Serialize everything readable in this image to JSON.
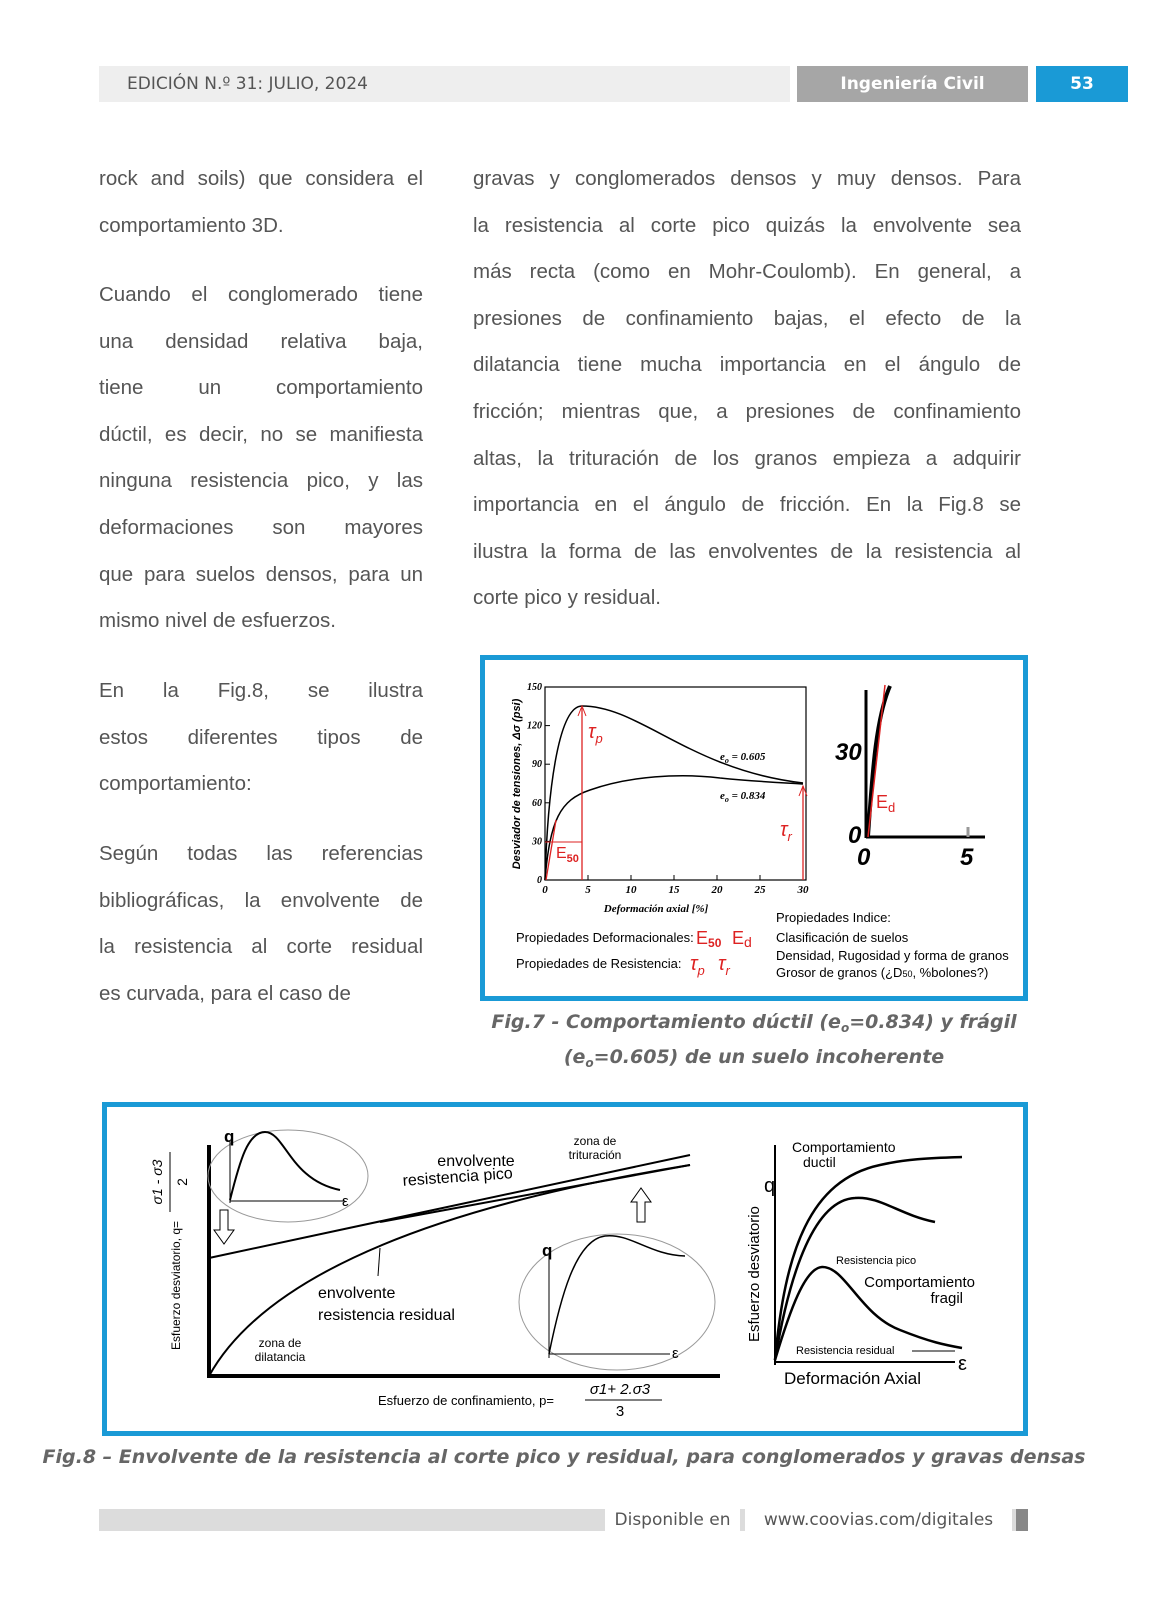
{
  "header": {
    "edition": "EDICIÓN N.º 31: JULIO, 2024",
    "section": "Ingeniería Civil",
    "page": "53"
  },
  "left_column": [
    {
      "lines": [
        "rock and soils) que considera el",
        "comportamiento 3D."
      ]
    },
    {
      "lines": [
        "Cuando el conglomerado tiene",
        "una densidad relativa baja,",
        "tiene un comportamiento",
        "dúctil, es decir, no se manifiesta",
        "ninguna resistencia pico, y las",
        "deformaciones son mayores",
        "que para suelos densos, para un",
        "mismo nivel de esfuerzos."
      ]
    },
    {
      "lines": [
        "En la Fig.8, se ilustra",
        "estos diferentes tipos de",
        "comportamiento:"
      ]
    },
    {
      "lines": [
        "Según todas las referencias",
        "bibliográficas, la envolvente de",
        "la resistencia al corte residual",
        "es curvada, para el caso de"
      ]
    }
  ],
  "right_column": [
    {
      "lines": [
        "gravas y conglomerados densos y muy densos.  Para",
        "la resistencia al corte pico quizás la envolvente sea",
        "más recta (como en Mohr-Coulomb). En general, a",
        "presiones de confinamiento bajas, el efecto de la",
        "dilatancia tiene mucha importancia en el ángulo de",
        "fricción; mientras que, a presiones de confinamiento",
        "altas, la trituración de los granos empieza a adquirir",
        "importancia en el ángulo de fricción. En la Fig.8 se",
        "ilustra la forma de las envolventes de la resistencia al",
        "corte pico y residual."
      ]
    }
  ],
  "fig7": {
    "y_label": "Desviador de tensiones, Δσ (psi)",
    "x_label": "Deformación axial [%]",
    "yticks": [
      0,
      30,
      60,
      90,
      120,
      150
    ],
    "xticks": [
      0,
      5,
      10,
      15,
      20,
      25,
      30
    ],
    "curve_dense": {
      "symbol": "e",
      "sub": "o",
      "text": " = 0.605"
    },
    "curve_loose": {
      "symbol": "e",
      "sub": "o",
      "text": " = 0.834"
    },
    "tau_p": {
      "symbol": "τ",
      "sub": "p"
    },
    "tau_r": {
      "symbol": "τ",
      "sub": "r"
    },
    "e50": {
      "symbol": "E",
      "sub": "50"
    },
    "inset": {
      "y_tick_top": "30",
      "y_tick_zero": "0",
      "x_tick_zero": "0",
      "x_tick_right": "5",
      "ed": {
        "symbol": "E",
        "sub": "d"
      }
    },
    "deformational": "Propiedades Deformacionales:",
    "def_e50": {
      "symbol": "E",
      "sub": "50"
    },
    "def_ed": {
      "symbol": "E",
      "sub": "d"
    },
    "resistance": "Propiedades de Resistencia:",
    "res_tau_p": {
      "symbol": "τ",
      "sub": "p"
    },
    "res_tau_r": {
      "symbol": "τ",
      "sub": "r"
    },
    "index_title": "Propiedades Indice:",
    "index_1": "Clasificación de suelos",
    "index_2": "Densidad, Rugosidad y forma de granos",
    "index_3": {
      "before": "Grosor de granos (¿D",
      "sub": "50",
      "after": ", %bolones?)"
    },
    "caption": {
      "line1_a": "Fig.7 - Comportamiento dúctil (e",
      "line1_sub": "o",
      "line1_b": "=0.834) y frágil",
      "line2_a": "(e",
      "line2_sub": "o",
      "line2_b": "=0.605) de un suelo incoherente"
    }
  },
  "fig8": {
    "y_label": "Esfuerzo desviatorio, q=",
    "y_num": "σ1 - σ3",
    "y_den": "2",
    "x_label": "Esfuerzo de confinamiento, p=",
    "x_num": "σ1+ 2.σ3",
    "x_den": "3",
    "peak_envelope": [
      "envolvente",
      "resistencia pico"
    ],
    "crushing_zone": [
      "zona de",
      "trituración"
    ],
    "residual_envelope": [
      "envolvente",
      "resistencia residual"
    ],
    "dilatancy_zone": [
      "zona de",
      "dilatancia"
    ],
    "inset_1": {
      "q": "q",
      "eps": "ε"
    },
    "inset_2": {
      "q": "q",
      "eps": "ε"
    },
    "right": {
      "y_label": "Esfuerzo desviatorio",
      "q": "q",
      "ductile": [
        "Comportamiento",
        "ductil"
      ],
      "peak": "Resistencia pico",
      "brittle": [
        "Comportamiento",
        "fragil"
      ],
      "residual": "Resistencia residual",
      "x_label": "Deformación Axial",
      "eps": "ε"
    },
    "caption": "Fig.8 – Envolvente de la resistencia al corte pico y residual, para conglomerados y gravas densas"
  },
  "footer": {
    "available": "Disponible en",
    "url": "www.coovias.com/digitales"
  }
}
